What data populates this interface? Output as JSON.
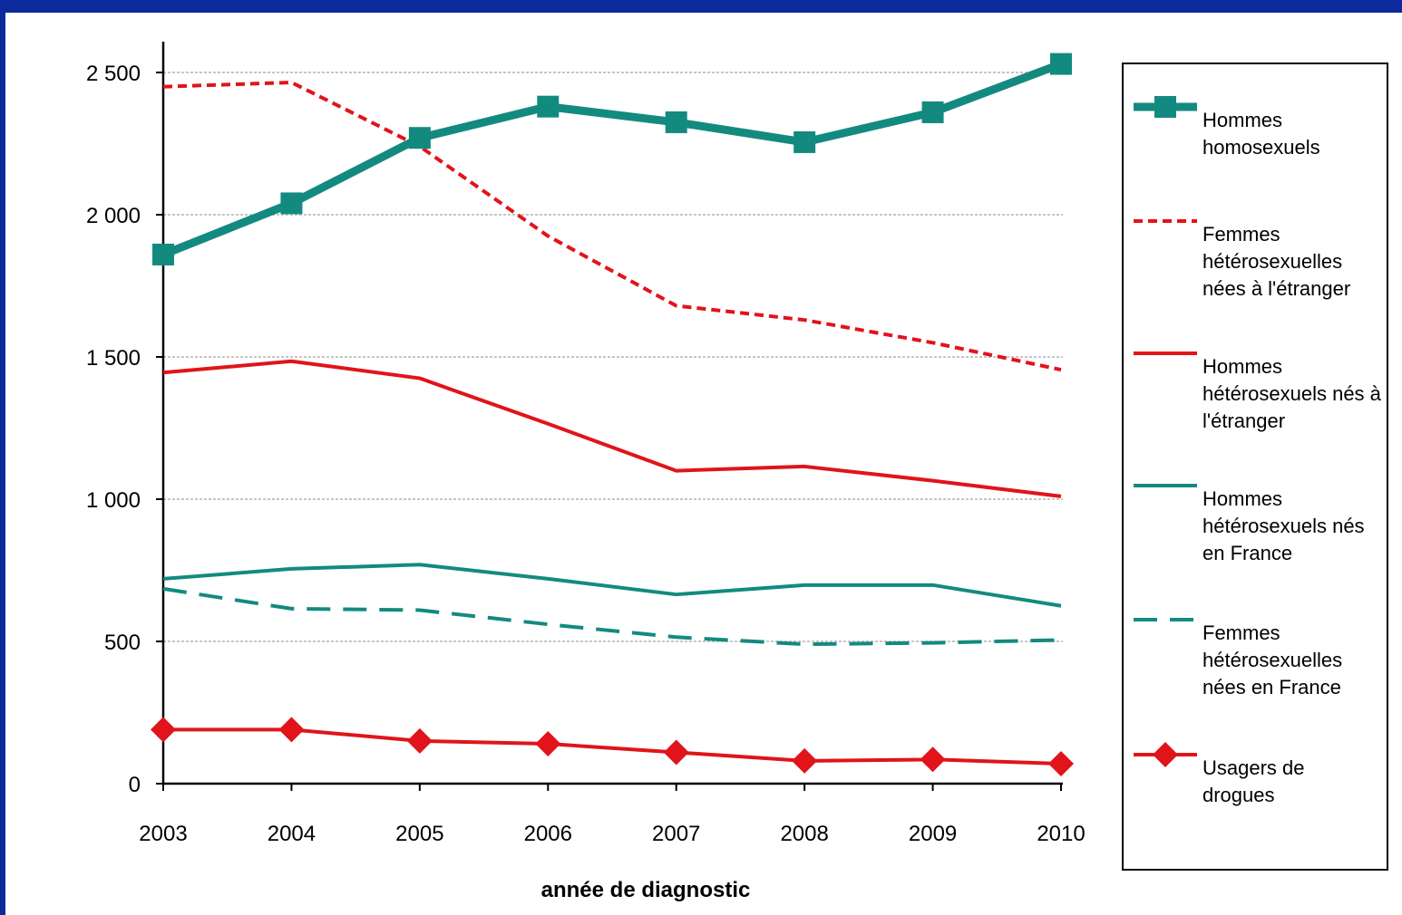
{
  "chart_data": {
    "type": "line",
    "xlabel": "année de diagnostic",
    "ylabel": "",
    "x": [
      "2003",
      "2004",
      "2005",
      "2006",
      "2007",
      "2008",
      "2009",
      "2010"
    ],
    "yticks": [
      "0",
      "500",
      "1 000",
      "1 500",
      "2 000",
      "2 500"
    ],
    "ylim": [
      0,
      2500
    ],
    "grid": true,
    "legend_position": "right",
    "series": [
      {
        "name": "Hommes homosexuels",
        "legend_lines": [
          "Hommes",
          "homosexuels"
        ],
        "color": "#138a80",
        "style": "solid-thick",
        "marker": "square",
        "values": [
          1860,
          2040,
          2270,
          2380,
          2325,
          2255,
          2360,
          2530
        ]
      },
      {
        "name": "Femmes hétérosexuelles nées à l'étranger",
        "legend_lines": [
          "Femmes",
          "hétérosexuelles",
          "nées à l'étranger"
        ],
        "color": "#e0141a",
        "style": "dotted",
        "marker": "none",
        "values": [
          2450,
          2465,
          2240,
          1925,
          1680,
          1630,
          1550,
          1455
        ]
      },
      {
        "name": "Hommes hétérosexuels nés à l'étranger",
        "legend_lines": [
          "Hommes",
          "hétérosexuels nés à",
          "l'étranger"
        ],
        "color": "#e0141a",
        "style": "solid",
        "marker": "none",
        "values": [
          1445,
          1485,
          1425,
          1265,
          1100,
          1115,
          1065,
          1010
        ]
      },
      {
        "name": "Hommes hétérosexuels nés en France",
        "legend_lines": [
          "Hommes",
          "hétérosexuels nés",
          "en France"
        ],
        "color": "#138a80",
        "style": "solid",
        "marker": "none",
        "values": [
          720,
          755,
          770,
          720,
          665,
          698,
          698,
          625
        ]
      },
      {
        "name": "Femmes hétérosexuelles nées en France",
        "legend_lines": [
          "Femmes",
          "hétérosexuelles",
          "nées en France"
        ],
        "color": "#138a80",
        "style": "dashed",
        "marker": "none",
        "values": [
          685,
          615,
          610,
          560,
          515,
          490,
          495,
          505
        ]
      },
      {
        "name": "Usagers de drogues",
        "legend_lines": [
          "Usagers de",
          "drogues"
        ],
        "color": "#e0141a",
        "style": "solid",
        "marker": "diamond",
        "values": [
          190,
          190,
          150,
          140,
          110,
          80,
          85,
          70
        ]
      }
    ]
  }
}
